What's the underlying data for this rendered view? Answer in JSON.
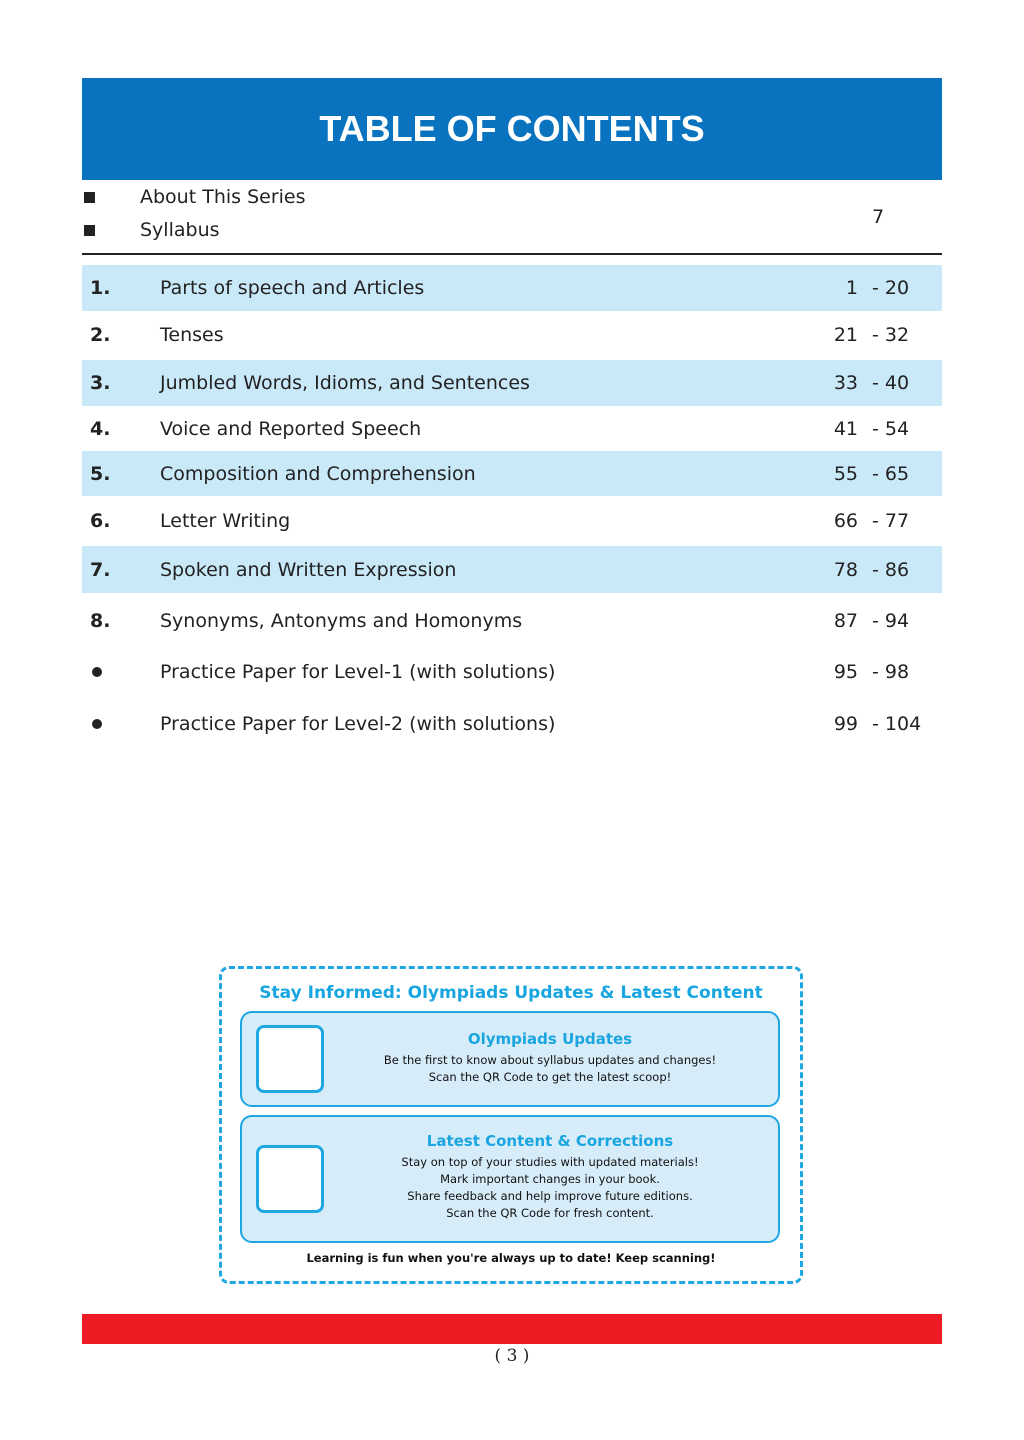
{
  "header": {
    "title": "TABLE OF CONTENTS"
  },
  "front": {
    "items": [
      "About This Series",
      "Syllabus"
    ],
    "page": "7"
  },
  "rows": [
    {
      "num": "1.",
      "title": "Parts of speech and Articles",
      "start": "1",
      "end": "- 20"
    },
    {
      "num": "2.",
      "title": "Tenses",
      "start": "21",
      "end": "- 32"
    },
    {
      "num": "3.",
      "title": "Jumbled Words, Idioms, and Sentences",
      "start": "33",
      "end": "- 40"
    },
    {
      "num": "4.",
      "title": "Voice and Reported Speech",
      "start": "41",
      "end": "- 54"
    },
    {
      "num": "5.",
      "title": "Composition and Comprehension",
      "start": "55",
      "end": "- 65"
    },
    {
      "num": "6.",
      "title": "Letter Writing",
      "start": "66",
      "end": "- 77"
    },
    {
      "num": "7.",
      "title": "Spoken and Written Expression",
      "start": "78",
      "end": "- 86"
    },
    {
      "num": "8.",
      "title": "Synonyms, Antonyms and Homonyms",
      "start": "87",
      "end": "- 94"
    }
  ],
  "practice": [
    {
      "title": "Practice Paper for Level-1 (with solutions)",
      "start": "95",
      "end": "- 98"
    },
    {
      "title": "Practice Paper for Level-2 (with solutions)",
      "start": "99",
      "end": "- 104"
    }
  ],
  "info": {
    "title": "Stay Informed: Olympiads Updates & Latest Content",
    "card1": {
      "title": "Olympiads Updates",
      "lines": [
        "Be the first to know about syllabus updates and changes!",
        "Scan the QR Code to get the latest scoop!"
      ]
    },
    "card2": {
      "title": "Latest Content & Corrections",
      "lines": [
        "Stay on top of your studies with updated materials!",
        "Mark important changes in your book.",
        "Share feedback and help improve future editions.",
        "Scan the QR Code for fresh content."
      ]
    },
    "footer": "Learning is fun when you're always up to date! Keep scanning!"
  },
  "page_number": "( 3 )",
  "colors": {
    "header": "#0a73bf",
    "row_highlight": "#c9e8f8",
    "accent": "#1ea7e1",
    "footer_bar": "#ed1c24"
  }
}
